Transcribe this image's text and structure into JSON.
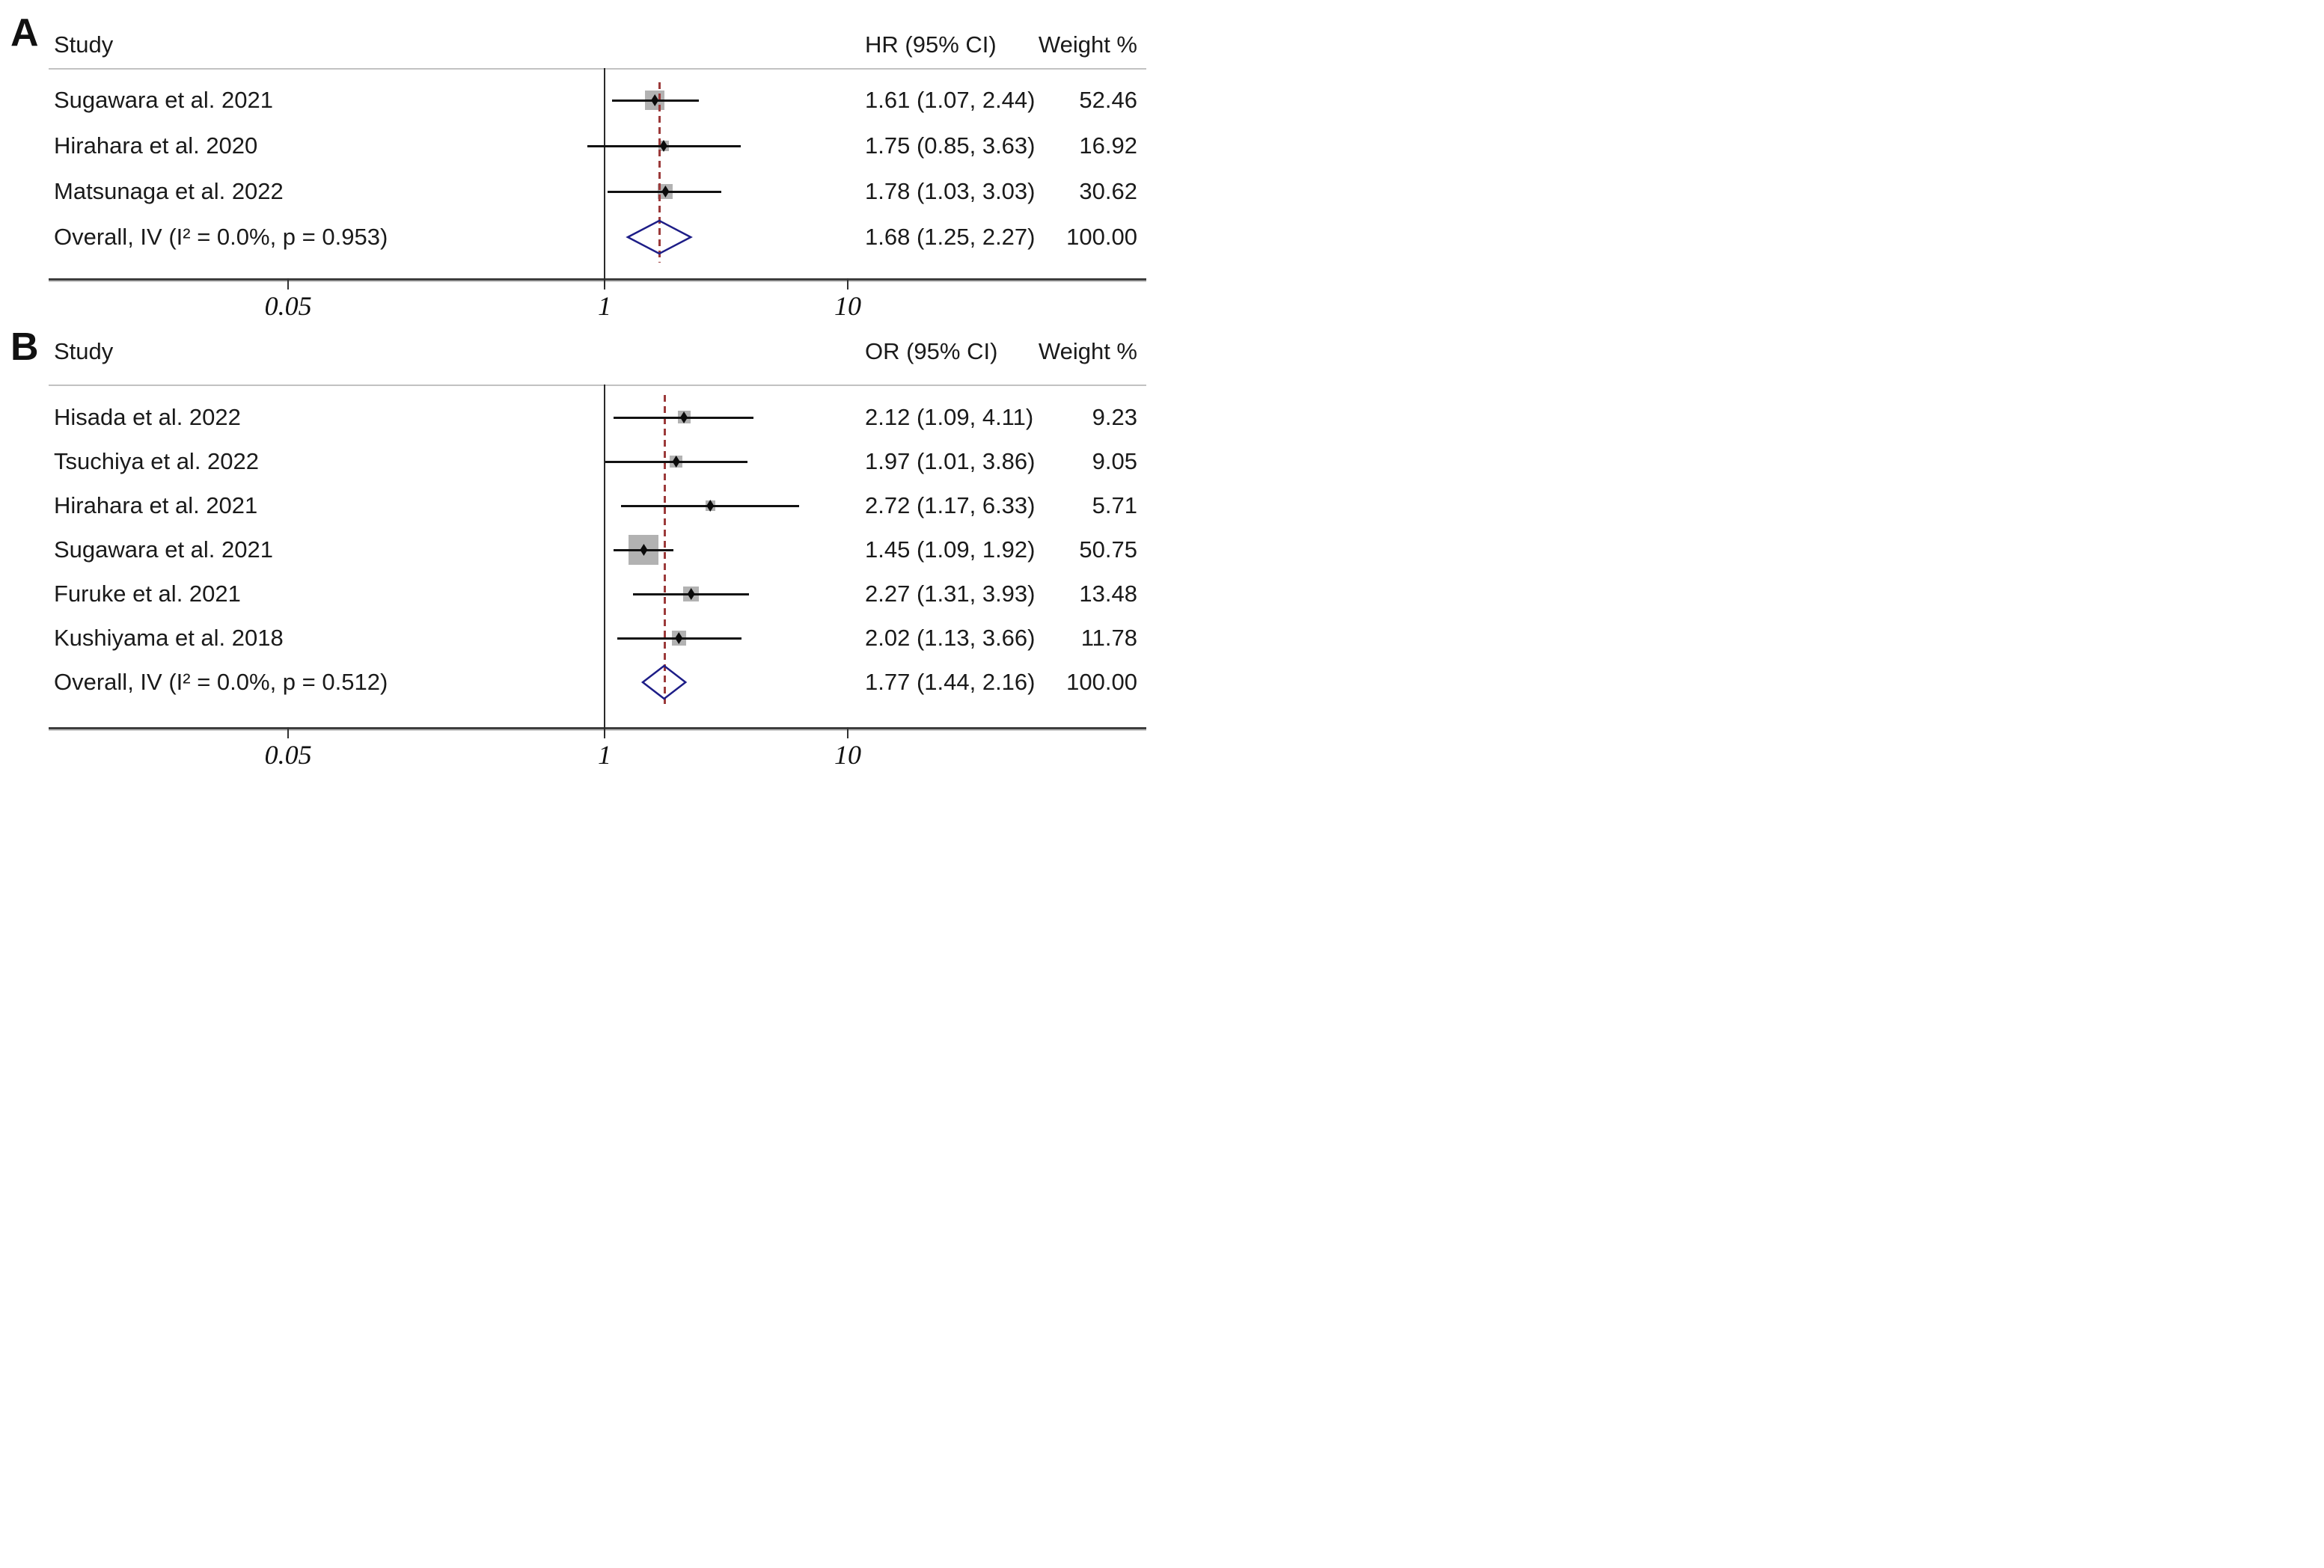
{
  "figure": {
    "colors": {
      "dashed_line": "#9c3a3a",
      "diamond_outline": "#1d1d87",
      "weight_square": "#b2b2b2",
      "ci_line": "#121212",
      "axis_line": "#3d3d3d",
      "header_rule": "#c2c2c2",
      "text": "#1a1a1a"
    }
  },
  "chart_data": [
    {
      "type": "scatter",
      "subtype": "forest-plot",
      "panel_label": "A",
      "effect_measure": "HR",
      "xscale": "log",
      "x_ticks": [
        "0.05",
        "1",
        "10"
      ],
      "reference_value": 1,
      "legend_position": "none",
      "columns": {
        "study": "Study",
        "effect": "HR (95% CI)",
        "weight": "Weight %"
      },
      "rows": [
        {
          "study": "Sugawara et al. 2021",
          "est": 1.61,
          "lo": 1.07,
          "hi": 2.44,
          "effect_text": "1.61 (1.07, 2.44)",
          "weight": 52.46,
          "weight_text": "52.46"
        },
        {
          "study": "Hirahara et al. 2020",
          "est": 1.75,
          "lo": 0.85,
          "hi": 3.63,
          "effect_text": "1.75 (0.85, 3.63)",
          "weight": 16.92,
          "weight_text": "16.92"
        },
        {
          "study": "Matsunaga et al. 2022",
          "est": 1.78,
          "lo": 1.03,
          "hi": 3.03,
          "effect_text": "1.78 (1.03, 3.03)",
          "weight": 30.62,
          "weight_text": "30.62"
        }
      ],
      "overall": {
        "study": "Overall, IV (I² = 0.0%, p = 0.953)",
        "est": 1.68,
        "lo": 1.25,
        "hi": 2.27,
        "effect_text": "1.68 (1.25, 2.27)",
        "weight": 100.0,
        "weight_text": "100.00"
      }
    },
    {
      "type": "scatter",
      "subtype": "forest-plot",
      "panel_label": "B",
      "effect_measure": "OR",
      "xscale": "log",
      "x_ticks": [
        "0.05",
        "1",
        "10"
      ],
      "reference_value": 1,
      "legend_position": "none",
      "columns": {
        "study": "Study",
        "effect": "OR (95% CI)",
        "weight": "Weight %"
      },
      "rows": [
        {
          "study": "Hisada et al. 2022",
          "est": 2.12,
          "lo": 1.09,
          "hi": 4.11,
          "effect_text": "2.12 (1.09, 4.11)",
          "weight": 9.23,
          "weight_text": "9.23"
        },
        {
          "study": "Tsuchiya et al. 2022",
          "est": 1.97,
          "lo": 1.01,
          "hi": 3.86,
          "effect_text": "1.97 (1.01, 3.86)",
          "weight": 9.05,
          "weight_text": "9.05"
        },
        {
          "study": "Hirahara et al. 2021",
          "est": 2.72,
          "lo": 1.17,
          "hi": 6.33,
          "effect_text": "2.72 (1.17, 6.33)",
          "weight": 5.71,
          "weight_text": "5.71"
        },
        {
          "study": "Sugawara et al. 2021",
          "est": 1.45,
          "lo": 1.09,
          "hi": 1.92,
          "effect_text": "1.45 (1.09, 1.92)",
          "weight": 50.75,
          "weight_text": "50.75"
        },
        {
          "study": "Furuke et al. 2021",
          "est": 2.27,
          "lo": 1.31,
          "hi": 3.93,
          "effect_text": "2.27 (1.31, 3.93)",
          "weight": 13.48,
          "weight_text": "13.48"
        },
        {
          "study": "Kushiyama et al. 2018",
          "est": 2.02,
          "lo": 1.13,
          "hi": 3.66,
          "effect_text": "2.02 (1.13, 3.66)",
          "weight": 11.78,
          "weight_text": "11.78"
        }
      ],
      "overall": {
        "study": "Overall, IV (I² = 0.0%, p = 0.512)",
        "est": 1.77,
        "lo": 1.44,
        "hi": 2.16,
        "effect_text": "1.77 (1.44, 2.16)",
        "weight": 100.0,
        "weight_text": "100.00"
      }
    }
  ]
}
